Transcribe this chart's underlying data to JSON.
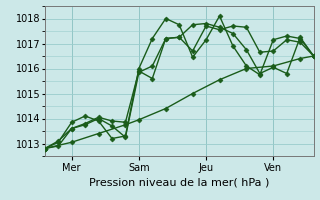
{
  "title": "",
  "xlabel": "Pression niveau de la mer( hPa )",
  "ylabel": "",
  "bg_color": "#cce8e8",
  "grid_color": "#99cccc",
  "line_color": "#1a5c1a",
  "marker_color": "#1a5c1a",
  "ylim": [
    1012.5,
    1018.5
  ],
  "xlim": [
    0,
    100
  ],
  "yticks": [
    1013,
    1014,
    1015,
    1016,
    1017,
    1018
  ],
  "xtick_positions": [
    10,
    35,
    60,
    85
  ],
  "xtick_labels": [
    "Mer",
    "Sam",
    "Jeu",
    "Ven"
  ],
  "vline_positions": [
    10,
    35,
    60,
    85
  ],
  "series": [
    {
      "x": [
        0,
        10,
        20,
        30,
        35,
        45,
        55,
        65,
        75,
        85,
        95,
        100
      ],
      "y": [
        1012.8,
        1013.05,
        1013.4,
        1013.75,
        1013.95,
        1014.4,
        1015.0,
        1015.55,
        1016.0,
        1016.1,
        1016.4,
        1016.5
      ],
      "marker": "D",
      "markersize": 2.5,
      "linewidth": 1.0
    },
    {
      "x": [
        0,
        5,
        10,
        15,
        20,
        25,
        30,
        35,
        40,
        45,
        50,
        55,
        60,
        65,
        70,
        75,
        80,
        85,
        90,
        95,
        100
      ],
      "y": [
        1012.8,
        1012.9,
        1013.6,
        1013.8,
        1014.05,
        1013.9,
        1013.85,
        1015.9,
        1015.6,
        1017.2,
        1017.25,
        1017.75,
        1017.8,
        1017.65,
        1017.4,
        1016.75,
        1015.8,
        1016.05,
        1015.8,
        1017.25,
        1016.5
      ],
      "marker": "D",
      "markersize": 2.5,
      "linewidth": 1.0
    },
    {
      "x": [
        0,
        5,
        10,
        15,
        20,
        25,
        30,
        35,
        40,
        45,
        50,
        55,
        60,
        65,
        70,
        75,
        80,
        85,
        90,
        95,
        100
      ],
      "y": [
        1012.8,
        1013.1,
        1013.6,
        1013.75,
        1014.0,
        1013.7,
        1013.25,
        1015.85,
        1016.1,
        1017.2,
        1017.25,
        1016.7,
        1017.7,
        1017.55,
        1017.7,
        1017.65,
        1016.65,
        1016.7,
        1017.15,
        1017.05,
        1016.5
      ],
      "marker": "D",
      "markersize": 2.5,
      "linewidth": 1.0
    },
    {
      "x": [
        0,
        5,
        10,
        15,
        20,
        25,
        30,
        35,
        40,
        45,
        50,
        55,
        60,
        65,
        70,
        75,
        80,
        85,
        90,
        95,
        100
      ],
      "y": [
        1012.8,
        1013.05,
        1013.85,
        1014.1,
        1013.9,
        1013.2,
        1013.3,
        1016.0,
        1017.2,
        1018.0,
        1017.75,
        1016.45,
        1017.15,
        1018.1,
        1016.9,
        1016.1,
        1015.75,
        1017.15,
        1017.3,
        1017.2,
        1016.5
      ],
      "marker": "D",
      "markersize": 2.5,
      "linewidth": 1.0
    }
  ]
}
